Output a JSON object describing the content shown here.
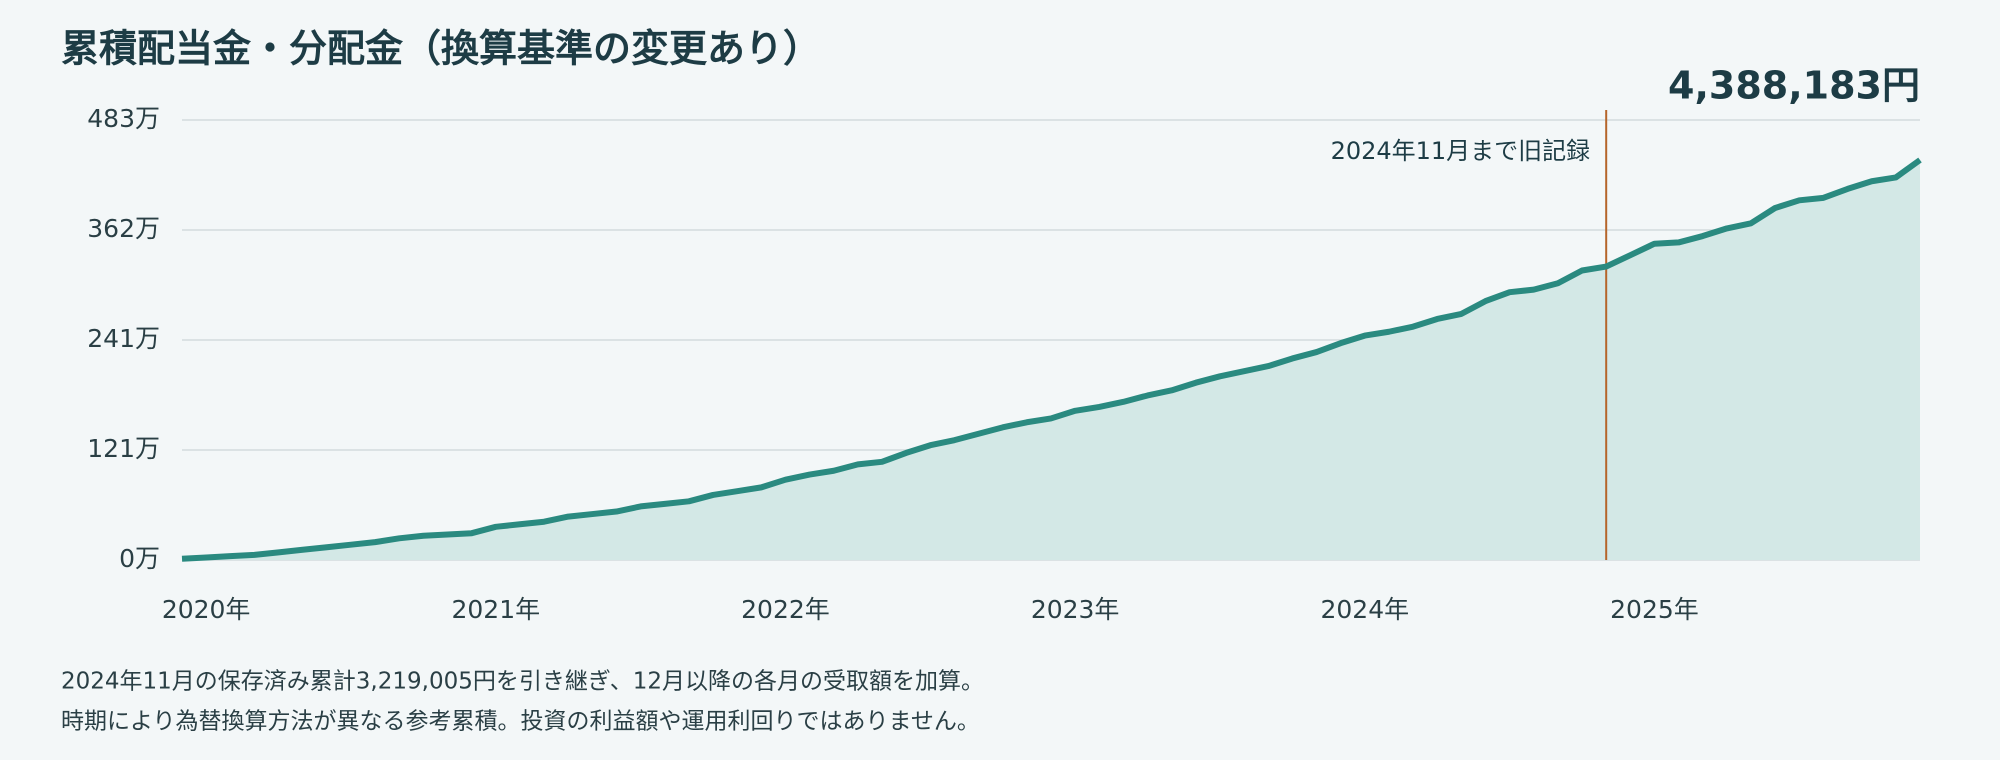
{
  "chart_data": {
    "type": "area",
    "title": "累積配当金・分配金（換算基準の変更あり）",
    "total_label": "4,388,183円",
    "categories": [
      null,
      "2020年",
      null,
      null,
      null,
      null,
      null,
      null,
      null,
      null,
      null,
      null,
      null,
      "2021年",
      null,
      null,
      null,
      null,
      null,
      null,
      null,
      null,
      null,
      null,
      null,
      "2022年",
      null,
      null,
      null,
      null,
      null,
      null,
      null,
      null,
      null,
      null,
      null,
      "2023年",
      null,
      null,
      null,
      null,
      null,
      null,
      null,
      null,
      null,
      null,
      null,
      "2024年",
      null,
      null,
      null,
      null,
      null,
      null,
      null,
      null,
      null,
      null,
      null,
      "2025年",
      null,
      null,
      null,
      null,
      null,
      null,
      null,
      null,
      null,
      null,
      null
    ],
    "values": [
      14000,
      28000,
      42000,
      56000,
      84000,
      112000,
      140000,
      168000,
      196000,
      238000,
      266000,
      280000,
      294000,
      364000,
      392000,
      420000,
      476000,
      504000,
      532000,
      588000,
      616000,
      644000,
      714000,
      755000,
      797000,
      881000,
      937000,
      979000,
      1049000,
      1077000,
      1175000,
      1259000,
      1315000,
      1385000,
      1455000,
      1511000,
      1553000,
      1637000,
      1679000,
      1735000,
      1805000,
      1861000,
      1945000,
      2015000,
      2071000,
      2127000,
      2211000,
      2281000,
      2379000,
      2462000,
      2504000,
      2560000,
      2644000,
      2700000,
      2840000,
      2938000,
      2966000,
      3036000,
      3176000,
      3219005,
      3344000,
      3470000,
      3484000,
      3554000,
      3638000,
      3694000,
      3862000,
      3946000,
      3973000,
      4071000,
      4155000,
      4197000,
      4388183
    ],
    "color": "#2a8a80",
    "fill_color": "#d3e8e6",
    "ylim": [
      0,
      4827001
    ],
    "yticks": [
      {
        "value": 0,
        "label": "0万"
      },
      {
        "value": 1206750,
        "label": "121万"
      },
      {
        "value": 2413501,
        "label": "241万"
      },
      {
        "value": 3620251,
        "label": "362万"
      },
      {
        "value": 4827001,
        "label": "483万"
      }
    ],
    "grid": true,
    "annotation": {
      "text": "2024年11月まで旧記録",
      "category_index": 59,
      "color": "#b5652a"
    },
    "notes": [
      "2024年11月の保存済み累計3,219,005円を引き継ぎ、12月以降の各月の受取額を加算。",
      "時期により為替換算方法が異なる参考累積。投資の利益額や運用利回りではありません。"
    ]
  }
}
